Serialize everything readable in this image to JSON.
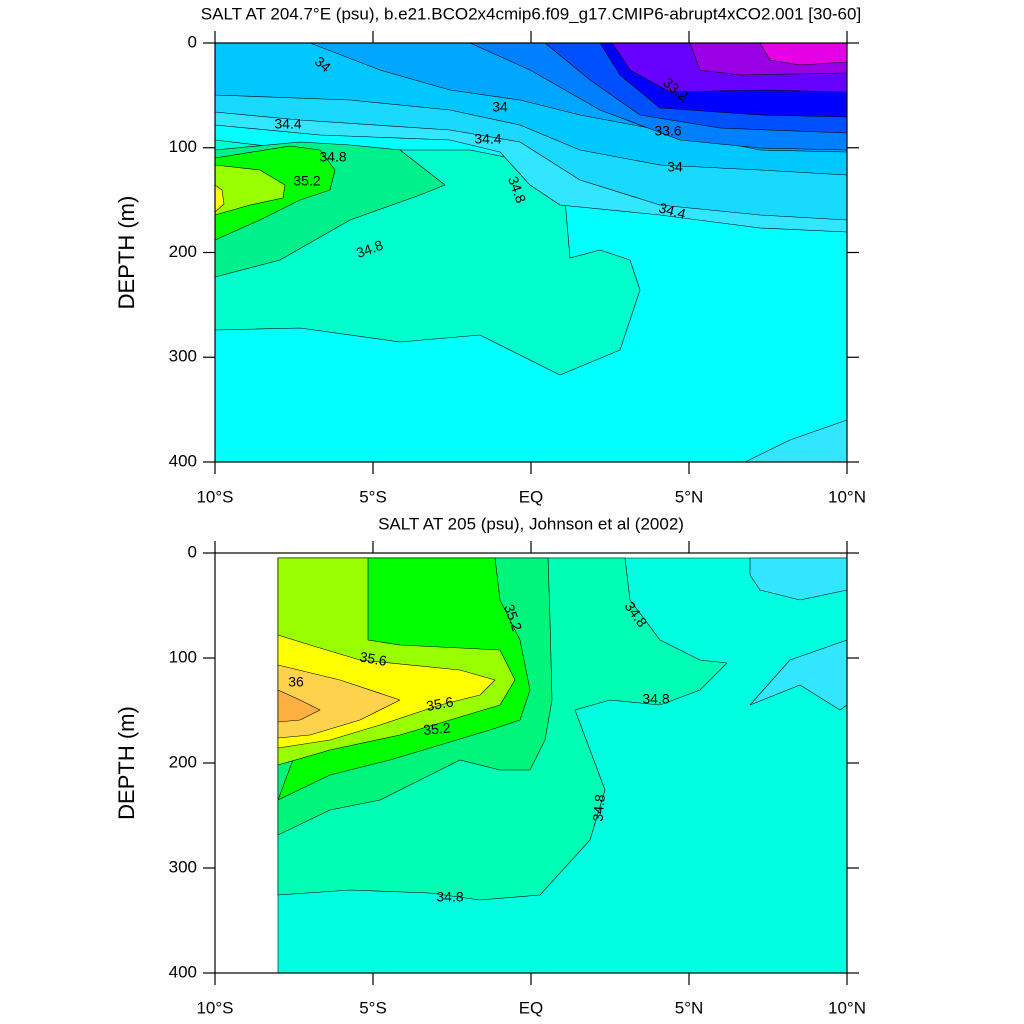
{
  "chart_data": [
    {
      "type": "contour",
      "title": "SALT AT 204.7°E (psu), b.e21.BCO2x4cmip6.f09_g17.CMIP6-abrupt4xCO2.001 [30-60]",
      "y_label": "DEPTH (m)",
      "xlim": [
        -10,
        10
      ],
      "xticks": [
        {
          "value": -10,
          "label": "10°S"
        },
        {
          "value": -5,
          "label": "5°S"
        },
        {
          "value": 0,
          "label": "EQ"
        },
        {
          "value": 5,
          "label": "5°N"
        },
        {
          "value": 10,
          "label": "10°N"
        }
      ],
      "ylim": [
        0,
        400
      ],
      "yticks": [
        0,
        100,
        200,
        300,
        400
      ],
      "invert_y": true,
      "bands": [
        {
          "min": 34.6,
          "max": 34.8,
          "color": "#00ffff"
        },
        {
          "min": 34.4,
          "max": 34.6,
          "color": "#33e6ff"
        },
        {
          "min": 34.8,
          "max": 35.0,
          "color": "#00ffcc"
        },
        {
          "min": 35.0,
          "max": 35.2,
          "color": "#00f08c"
        },
        {
          "min": 35.2,
          "max": 35.4,
          "color": "#00ff00"
        },
        {
          "min": 35.4,
          "max": 35.6,
          "color": "#99ff00"
        },
        {
          "min": 35.6,
          "max": 35.8,
          "color": "#ffff00"
        },
        {
          "min": 34.2,
          "max": 34.4,
          "color": "#1ad9ff"
        },
        {
          "min": 34.0,
          "max": 34.2,
          "color": "#00c8ff"
        },
        {
          "min": 33.8,
          "max": 34.0,
          "color": "#00a6ff"
        },
        {
          "min": 33.6,
          "max": 33.8,
          "color": "#0080ff"
        },
        {
          "min": 33.4,
          "max": 33.6,
          "color": "#0050ff"
        },
        {
          "min": 33.2,
          "max": 33.4,
          "color": "#0000ff"
        },
        {
          "min": 33.0,
          "max": 33.2,
          "color": "#6600ff"
        },
        {
          "min": 32.8,
          "max": 33.0,
          "color": "#9900e6"
        },
        {
          "min": 32.6,
          "max": 32.8,
          "color": "#e600e6"
        }
      ],
      "contour_labels": [
        34,
        34,
        34.4,
        34.4,
        34.8,
        34.8,
        35.2,
        34.8,
        33.2,
        33.6,
        34,
        34.4
      ]
    },
    {
      "type": "contour",
      "title": "SALT AT 205 (psu), Johnson et al (2002)",
      "y_label": "DEPTH (m)",
      "xlim": [
        -10,
        10
      ],
      "xticks": [
        {
          "value": -10,
          "label": "10°S"
        },
        {
          "value": -5,
          "label": "5°S"
        },
        {
          "value": 0,
          "label": "EQ"
        },
        {
          "value": 5,
          "label": "5°N"
        },
        {
          "value": 10,
          "label": "10°N"
        }
      ],
      "ylim": [
        0,
        400
      ],
      "yticks": [
        0,
        100,
        200,
        300,
        400
      ],
      "invert_y": true,
      "bands": [
        {
          "min": 34.6,
          "max": 34.8,
          "color": "#00ffe0"
        },
        {
          "min": 34.8,
          "max": 35.0,
          "color": "#00ffb4"
        },
        {
          "min": 34.4,
          "max": 34.6,
          "color": "#33e6ff"
        },
        {
          "min": 35.0,
          "max": 35.2,
          "color": "#00f57a"
        },
        {
          "min": 35.2,
          "max": 35.4,
          "color": "#00ff00"
        },
        {
          "min": 35.4,
          "max": 35.6,
          "color": "#99ff00"
        },
        {
          "min": 35.6,
          "max": 35.8,
          "color": "#ffff00"
        },
        {
          "min": 35.8,
          "max": 36.0,
          "color": "#ffd24d"
        },
        {
          "min": 36.0,
          "max": 36.2,
          "color": "#ffb040"
        }
      ],
      "contour_labels": [
        35.2,
        34.8,
        35.6,
        36,
        35.6,
        35.2,
        34.8,
        34.8,
        34.8
      ]
    }
  ]
}
